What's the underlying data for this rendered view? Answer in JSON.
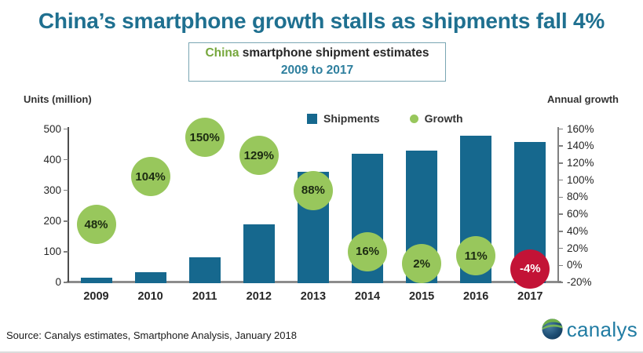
{
  "title": "China’s smartphone growth stalls as shipments fall 4%",
  "subtitle": {
    "highlight": "China",
    "rest": " smartphone shipment estimates",
    "period": "2009 to 2017"
  },
  "legend": {
    "shipments": "Shipments",
    "growth": "Growth"
  },
  "source": "Source: Canalys estimates, Smartphone Analysis, January 2018",
  "logo": {
    "text": "canalys"
  },
  "colors": {
    "title": "#1f7090",
    "subtitle_highlight": "#76a73c",
    "subtitle_period": "#2e7f9e",
    "bar": "#16688e",
    "growth_bubble": "#98c75c",
    "decline_bubble": "#c31336",
    "bubble_text": "#1c2b12",
    "decline_bubble_text": "#ffffff",
    "axis_line": "#4d4d4d",
    "baseline": "#8c8c8c",
    "logo_text": "#217ca3",
    "logo_navy": "#123a5c",
    "logo_green": "#6faf4a"
  },
  "chart_data": {
    "type": "bar",
    "title": "China smartphone shipment estimates 2009 to 2017",
    "categories": [
      "2009",
      "2010",
      "2011",
      "2012",
      "2013",
      "2014",
      "2015",
      "2016",
      "2017"
    ],
    "series": [
      {
        "name": "Shipments",
        "kind": "bar",
        "axis": "left",
        "unit": "million units",
        "values": [
          15,
          33,
          83,
          190,
          360,
          420,
          429,
          477,
          459
        ]
      },
      {
        "name": "Growth",
        "kind": "bubble",
        "axis": "right",
        "unit": "percent",
        "values": [
          48,
          104,
          150,
          129,
          88,
          16,
          2,
          11,
          -4
        ],
        "labels": [
          "48%",
          "104%",
          "150%",
          "129%",
          "88%",
          "16%",
          "2%",
          "11%",
          "-4%"
        ]
      }
    ],
    "left_axis": {
      "title": "Units (million)",
      "min": 0,
      "max": 500,
      "step": 100,
      "tick_labels": [
        "500",
        "400",
        "300",
        "200",
        "100",
        "0"
      ]
    },
    "right_axis": {
      "title": "Annual growth",
      "min": -20,
      "max": 160,
      "step": 20,
      "tick_labels": [
        "160%",
        "140%",
        "120%",
        "100%",
        "80%",
        "60%",
        "40%",
        "20%",
        "0%",
        "-20%"
      ]
    },
    "legend_position": "top-center",
    "grid": false
  }
}
